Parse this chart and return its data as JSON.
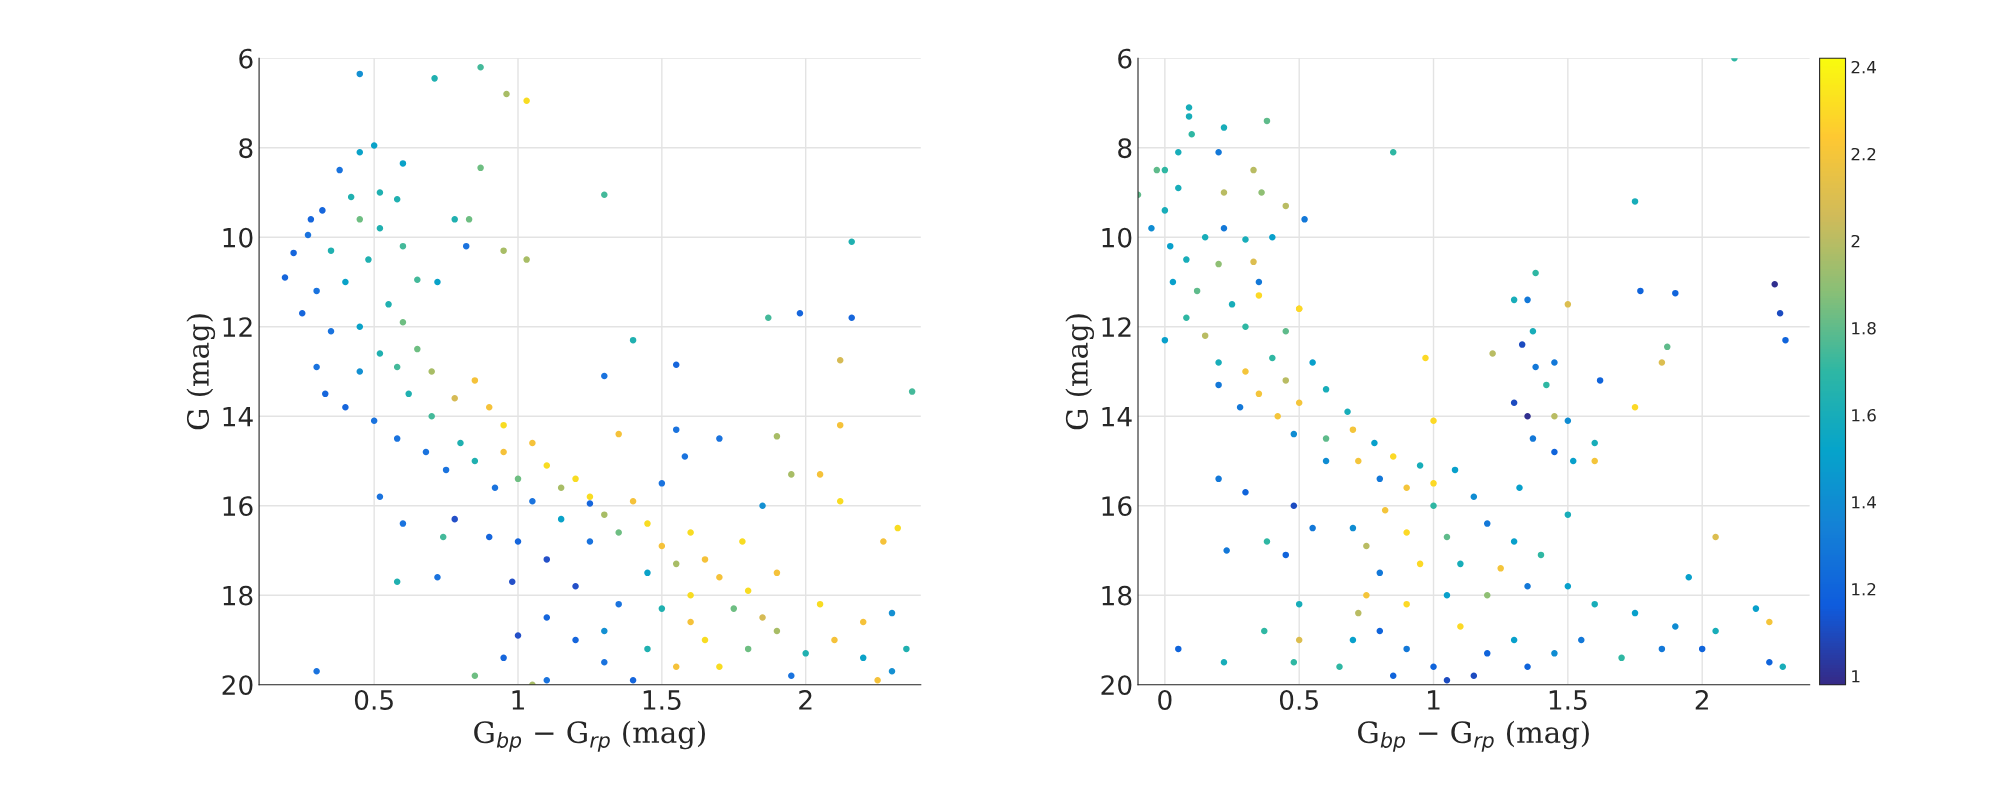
{
  "chart_data": [
    {
      "type": "scatter",
      "xlabel": "G$_{bp}$ − G$_{rp}$ (mag)",
      "ylabel": "G (mag)",
      "xlim": [
        0.1,
        2.4
      ],
      "ylim": [
        20,
        6
      ],
      "xticks": [
        0.5,
        1,
        1.5,
        2
      ],
      "yticks": [
        6,
        8,
        10,
        12,
        14,
        16,
        18,
        20
      ],
      "grid": true,
      "marker": "circle",
      "series": [
        {
          "x": [
            0.45,
            0.71,
            0.87,
            0.96,
            1.03,
            0.5,
            0.45,
            0.87,
            1.3,
            2.16,
            0.38,
            0.6,
            0.28,
            0.22,
            0.19,
            0.27,
            0.32,
            0.42,
            0.52,
            0.58,
            0.45,
            0.52,
            0.35,
            0.48,
            0.4,
            0.3,
            0.25,
            0.6,
            0.65,
            0.55,
            0.35,
            0.45,
            0.6,
            0.72,
            0.78,
            0.83,
            0.95,
            1.03,
            0.82,
            0.3,
            0.33,
            0.4,
            0.45,
            0.52,
            0.58,
            0.65,
            0.7,
            0.62,
            0.5,
            0.58,
            0.7,
            0.78,
            0.85,
            0.9,
            0.95,
            0.8,
            0.68,
            0.75,
            0.85,
            0.95,
            1.05,
            1.1,
            1.0,
            0.92,
            1.05,
            1.15,
            1.2,
            1.25,
            1.3,
            1.15,
            1.4,
            1.45,
            1.35,
            1.25,
            1.5,
            1.6,
            1.55,
            1.45,
            1.65,
            1.7,
            1.8,
            1.75,
            1.6,
            1.5,
            1.35,
            1.2,
            1.1,
            1.0,
            0.98,
            1.1,
            1.2,
            1.3,
            1.45,
            1.55,
            1.65,
            1.7,
            1.8,
            1.9,
            2.0,
            2.1,
            2.2,
            2.3,
            2.25,
            1.95,
            1.4,
            1.1,
            1.05,
            0.85,
            0.95,
            1.0,
            1.3,
            1.6,
            1.85,
            2.05,
            2.2,
            2.3,
            2.35,
            1.9,
            1.78,
            1.85,
            2.05,
            2.12,
            1.95,
            2.12,
            2.37,
            2.12,
            1.98,
            2.16,
            1.87,
            1.4,
            1.3,
            1.55,
            1.55,
            1.7,
            1.9,
            1.58,
            1.35,
            1.5,
            0.9,
            0.78,
            0.6,
            0.72,
            0.58,
            0.52,
            0.3,
            0.74,
            2.32,
            2.27,
            1.25
          ],
          "values": [
            6.35,
            6.45,
            6.2,
            6.8,
            6.95,
            7.95,
            8.1,
            8.45,
            9.05,
            10.1,
            8.5,
            8.35,
            9.6,
            10.35,
            10.9,
            9.95,
            9.4,
            9.1,
            9.0,
            9.15,
            9.6,
            9.8,
            10.3,
            10.5,
            11.0,
            11.2,
            11.7,
            10.2,
            10.95,
            11.5,
            12.1,
            12.0,
            11.9,
            11.0,
            9.6,
            9.6,
            10.3,
            10.5,
            10.2,
            12.9,
            13.5,
            13.8,
            13.0,
            12.6,
            12.9,
            12.5,
            13.0,
            13.5,
            14.1,
            14.5,
            14.0,
            13.6,
            13.2,
            13.8,
            14.2,
            14.6,
            14.8,
            15.2,
            15.0,
            14.8,
            14.6,
            15.1,
            15.4,
            15.6,
            15.9,
            15.6,
            15.4,
            15.8,
            16.2,
            16.3,
            15.9,
            16.4,
            16.6,
            16.8,
            16.9,
            16.6,
            17.3,
            17.5,
            17.2,
            17.6,
            17.9,
            18.3,
            18.0,
            18.3,
            18.2,
            17.8,
            17.2,
            16.8,
            17.7,
            18.5,
            19.0,
            19.5,
            19.2,
            19.6,
            19.0,
            19.6,
            19.2,
            18.8,
            19.3,
            19.0,
            19.4,
            19.7,
            19.9,
            19.8,
            19.9,
            19.9,
            20.0,
            19.8,
            19.4,
            18.9,
            18.8,
            18.6,
            18.5,
            18.2,
            18.6,
            18.4,
            19.2,
            17.5,
            16.8,
            16.0,
            15.3,
            15.9,
            15.3,
            14.2,
            13.45,
            12.75,
            11.7,
            11.8,
            11.8,
            12.3,
            13.1,
            12.85,
            14.3,
            14.5,
            14.45,
            14.9,
            14.4,
            15.5,
            16.7,
            16.3,
            16.4,
            17.6,
            17.7,
            15.8,
            19.7,
            16.7,
            16.5,
            16.8,
            15.95
          ],
          "colors": [
            "#1490d2",
            "#20b0b0",
            "#44b99a",
            "#a8bd66",
            "#f8dc22",
            "#0aa2c8",
            "#0aa2c8",
            "#6ebe82",
            "#44b99a",
            "#20b0b0",
            "#1a73de",
            "#0aa2c8",
            "#1666dc",
            "#1666dc",
            "#1666dc",
            "#1a73de",
            "#1666dc",
            "#20b0b0",
            "#20b0b0",
            "#20b0b0",
            "#6ebe82",
            "#20b0b0",
            "#20b0b0",
            "#20b0b0",
            "#0aa2c8",
            "#1a73de",
            "#1666dc",
            "#44b99a",
            "#44b99a",
            "#20b0b0",
            "#1a73de",
            "#0aa2c8",
            "#6ebe82",
            "#0aa2c8",
            "#20b0b0",
            "#6ebe82",
            "#a8bd66",
            "#a8bd66",
            "#1a73de",
            "#1a73de",
            "#1666dc",
            "#1666dc",
            "#1490d2",
            "#20b0b0",
            "#44b99a",
            "#6ebe82",
            "#a8bd66",
            "#20b0b0",
            "#1a73de",
            "#1a73de",
            "#44b99a",
            "#d6bb55",
            "#f5c23a",
            "#f5c23a",
            "#f8dc22",
            "#20b0b0",
            "#1a73de",
            "#1a73de",
            "#20b0b0",
            "#f5c23a",
            "#f5c23a",
            "#f8dc22",
            "#6ebe82",
            "#1a73de",
            "#1a73de",
            "#a8bd66",
            "#f8dc22",
            "#f8dc22",
            "#a8bd66",
            "#0aa2c8",
            "#f5c23a",
            "#f8dc22",
            "#6ebe82",
            "#1a73de",
            "#f5c23a",
            "#f8dc22",
            "#a8bd66",
            "#0aa2c8",
            "#f5c23a",
            "#f5c23a",
            "#f8dc22",
            "#6ebe82",
            "#f8dc22",
            "#20b0b0",
            "#1a73de",
            "#2450c8",
            "#2450c8",
            "#1666dc",
            "#2450c8",
            "#1666dc",
            "#1666dc",
            "#1a73de",
            "#20b0b0",
            "#f5c23a",
            "#f8dc22",
            "#f8dc22",
            "#6ebe82",
            "#a8bd66",
            "#20b0b0",
            "#f5c23a",
            "#0aa2c8",
            "#1490d2",
            "#f5c23a",
            "#1a73de",
            "#1666dc",
            "#1a73de",
            "#a8bd66",
            "#6ebe82",
            "#1666dc",
            "#2450c8",
            "#1490d2",
            "#f5c23a",
            "#d6bb55",
            "#f8dc22",
            "#f5c23a",
            "#1490d2",
            "#20b0b0",
            "#f5c23a",
            "#f8dc22",
            "#1490d2",
            "#f5c23a",
            "#f8dc22",
            "#a8bd66",
            "#f5c23a",
            "#44b99a",
            "#d6bb55",
            "#1666dc",
            "#1666dc",
            "#44b99a",
            "#20b0b0",
            "#1a73de",
            "#1666dc",
            "#1a73de",
            "#1a73de",
            "#a8bd66",
            "#1a73de",
            "#f5c23a",
            "#1a73de",
            "#1666dc",
            "#2450c8",
            "#1a73de",
            "#1a73de",
            "#20b0b0",
            "#1a73de",
            "#1a73de",
            "#44b99a",
            "#f8dc22",
            "#f5c23a",
            "#1666dc"
          ]
        }
      ]
    },
    {
      "type": "scatter",
      "xlabel": "G$_{bp}$ − G$_{rp}$ (mag)",
      "ylabel": "G (mag)",
      "xlim": [
        -0.1,
        2.4
      ],
      "ylim": [
        20,
        6
      ],
      "xticks": [
        0,
        0.5,
        1,
        1.5,
        2
      ],
      "yticks": [
        6,
        8,
        10,
        12,
        14,
        16,
        18,
        20
      ],
      "grid": true,
      "marker": "circle",
      "clim": [
        0.98,
        2.42
      ],
      "cticks": [
        1,
        1.2,
        1.4,
        1.6,
        1.8,
        2,
        2.2,
        2.4
      ],
      "series": [
        {
          "x": [
            2.12,
            0.09,
            0.09,
            0.22,
            0.38,
            0.85,
            0.1,
            0.05,
            0.2,
            0.0,
            -0.03,
            0.33,
            0.05,
            0.22,
            -0.1,
            0.36,
            0.45,
            0.52,
            0.0,
            -0.05,
            0.02,
            0.15,
            0.22,
            0.3,
            0.4,
            0.08,
            0.2,
            0.33,
            0.35,
            0.03,
            0.12,
            0.25,
            0.35,
            0.5,
            0.08,
            0.0,
            0.15,
            0.3,
            0.45,
            0.2,
            0.3,
            0.4,
            0.2,
            0.35,
            0.45,
            0.55,
            0.28,
            0.42,
            0.5,
            0.6,
            0.68,
            0.48,
            0.6,
            0.7,
            0.78,
            0.6,
            0.72,
            0.85,
            0.95,
            0.8,
            0.9,
            1.0,
            1.08,
            1.15,
            1.0,
            0.82,
            0.7,
            0.75,
            0.9,
            1.05,
            1.2,
            1.3,
            1.4,
            1.25,
            1.1,
            0.95,
            0.8,
            0.75,
            0.9,
            1.05,
            1.2,
            1.35,
            1.5,
            1.6,
            1.75,
            1.9,
            2.0,
            2.2,
            2.25,
            2.3,
            2.25,
            2.05,
            1.85,
            1.7,
            1.55,
            1.45,
            1.35,
            1.2,
            1.15,
            1.0,
            0.9,
            0.8,
            0.7,
            0.65,
            0.85,
            1.05,
            1.3,
            1.1,
            0.72,
            0.5,
            0.5,
            0.48,
            0.22,
            0.05,
            0.37,
            0.45,
            0.38,
            0.23,
            0.3,
            0.2,
            0.48,
            0.55,
            1.3,
            1.35,
            1.38,
            1.5,
            1.75,
            1.77,
            1.9,
            2.27,
            2.29,
            2.31,
            1.33,
            1.37,
            1.22,
            1.38,
            1.45,
            1.42,
            1.3,
            1.35,
            1.45,
            1.5,
            1.37,
            1.45,
            1.52,
            1.6,
            1.6,
            1.75,
            1.85,
            1.87,
            1.62,
            1.32,
            2.05,
            1.95,
            1.5,
            1.0,
            0.97,
            0.5
          ],
          "values": [
            6.0,
            7.1,
            7.3,
            7.55,
            7.4,
            8.1,
            7.7,
            8.1,
            8.1,
            8.5,
            8.5,
            8.5,
            8.9,
            9.0,
            9.05,
            9.0,
            9.3,
            9.6,
            9.4,
            9.8,
            10.2,
            10.0,
            9.8,
            10.05,
            10.0,
            10.5,
            10.6,
            10.55,
            11.0,
            11.0,
            11.2,
            11.5,
            11.3,
            11.6,
            11.8,
            12.3,
            12.2,
            12.0,
            12.1,
            12.8,
            13.0,
            12.7,
            13.3,
            13.5,
            13.2,
            12.8,
            13.8,
            14.0,
            13.7,
            13.4,
            13.9,
            14.4,
            14.5,
            14.3,
            14.6,
            15.0,
            15.0,
            14.9,
            15.1,
            15.4,
            15.6,
            15.5,
            15.2,
            15.8,
            16.0,
            16.1,
            16.5,
            16.9,
            16.6,
            16.7,
            16.4,
            16.8,
            17.1,
            17.4,
            17.3,
            17.3,
            17.5,
            18.0,
            18.2,
            18.0,
            18.0,
            17.8,
            17.8,
            18.2,
            18.4,
            18.7,
            19.2,
            18.3,
            18.6,
            19.6,
            19.5,
            18.8,
            19.2,
            19.4,
            19.0,
            19.3,
            19.6,
            19.3,
            19.8,
            19.6,
            19.2,
            18.8,
            19.0,
            19.6,
            19.8,
            19.9,
            19.0,
            18.7,
            18.4,
            19.0,
            18.2,
            19.5,
            19.5,
            19.2,
            18.8,
            17.1,
            16.8,
            17.0,
            15.7,
            15.4,
            16.0,
            16.5,
            11.4,
            11.4,
            10.8,
            11.5,
            9.2,
            11.2,
            11.25,
            11.05,
            11.7,
            12.3,
            12.4,
            12.1,
            12.6,
            12.9,
            12.8,
            13.3,
            13.7,
            14.0,
            14.0,
            14.1,
            14.5,
            14.8,
            15.0,
            15.0,
            14.6,
            13.8,
            12.8,
            12.45,
            13.2,
            15.6,
            16.7,
            17.6,
            16.2,
            14.1,
            12.7,
            11.6
          ],
          "cvalues": [
            1.7,
            1.6,
            1.6,
            1.6,
            1.8,
            1.7,
            1.7,
            1.6,
            1.3,
            1.7,
            1.8,
            2.0,
            1.6,
            2.0,
            1.8,
            1.9,
            2.0,
            1.3,
            1.6,
            1.4,
            1.5,
            1.6,
            1.3,
            1.6,
            1.5,
            1.6,
            1.9,
            2.1,
            1.3,
            1.5,
            1.8,
            1.6,
            2.3,
            2.2,
            1.7,
            1.5,
            2.0,
            1.7,
            1.8,
            1.6,
            2.2,
            1.7,
            1.3,
            2.2,
            2.0,
            1.5,
            1.3,
            2.2,
            2.2,
            1.6,
            1.6,
            1.4,
            1.8,
            2.2,
            1.5,
            1.4,
            2.2,
            2.3,
            1.6,
            1.3,
            2.2,
            2.3,
            1.5,
            1.4,
            1.7,
            2.2,
            1.4,
            2.0,
            2.3,
            1.8,
            1.3,
            1.5,
            1.7,
            2.2,
            1.6,
            2.3,
            1.3,
            2.2,
            2.3,
            1.5,
            1.9,
            1.3,
            1.5,
            1.6,
            1.5,
            1.4,
            1.2,
            1.5,
            2.2,
            1.6,
            1.2,
            1.6,
            1.3,
            1.7,
            1.3,
            1.4,
            1.2,
            1.2,
            1.1,
            1.2,
            1.3,
            1.2,
            1.5,
            1.7,
            1.2,
            1.1,
            1.5,
            2.3,
            2.0,
            2.1,
            1.6,
            1.7,
            1.6,
            1.2,
            1.7,
            1.2,
            1.7,
            1.3,
            1.2,
            1.3,
            1.1,
            1.3,
            1.6,
            1.3,
            1.7,
            2.1,
            1.6,
            1.2,
            1.2,
            1.0,
            1.1,
            1.2,
            1.1,
            1.6,
            2.0,
            1.3,
            1.3,
            1.7,
            1.1,
            1.0,
            2.0,
            1.4,
            1.3,
            1.2,
            1.5,
            2.2,
            1.6,
            2.3,
            2.1,
            1.8,
            1.2,
            1.5,
            2.1,
            1.5,
            1.6,
            2.3,
            2.3,
            2.3
          ]
        }
      ]
    }
  ]
}
